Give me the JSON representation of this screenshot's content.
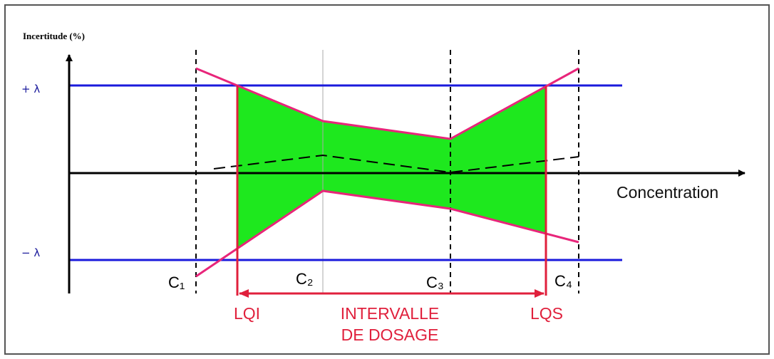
{
  "axis": {
    "y_label": "Incertitude (%)",
    "x_label": "Concentration",
    "upper_limit": "+ λ",
    "lower_limit": "− λ"
  },
  "levels": [
    "C₁",
    "C₂",
    "C₃",
    "C₄"
  ],
  "limits": {
    "lower": "LQI",
    "upper": "LQS"
  },
  "interval": {
    "lines": [
      "INTERVALLE",
      "DE DOSAGE"
    ]
  }
}
